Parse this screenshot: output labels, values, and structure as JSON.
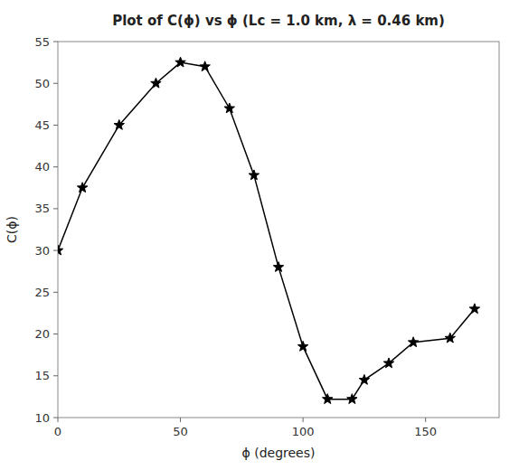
{
  "chart_data": {
    "type": "line",
    "title": "Plot of C(ϕ) vs ϕ (Lc = 1.0 km, λ = 0.46 km)",
    "xlabel": "ϕ (degrees)",
    "ylabel": "C(ϕ)",
    "x": [
      0,
      10,
      25,
      40,
      50,
      60,
      70,
      80,
      90,
      100,
      110,
      120,
      125,
      135,
      145,
      160,
      170
    ],
    "values": [
      30,
      37.5,
      45,
      50,
      52.5,
      52,
      47,
      39,
      28,
      18.5,
      12.2,
      12.2,
      14.5,
      16.5,
      19,
      19.5,
      23
    ],
    "color": "#000000",
    "marker": "star",
    "xlim": [
      0,
      180
    ],
    "ylim": [
      10,
      55
    ],
    "xticks": [
      0,
      50,
      100,
      150
    ],
    "yticks": [
      10,
      15,
      20,
      25,
      30,
      35,
      40,
      45,
      50,
      55
    ],
    "grid": false
  }
}
